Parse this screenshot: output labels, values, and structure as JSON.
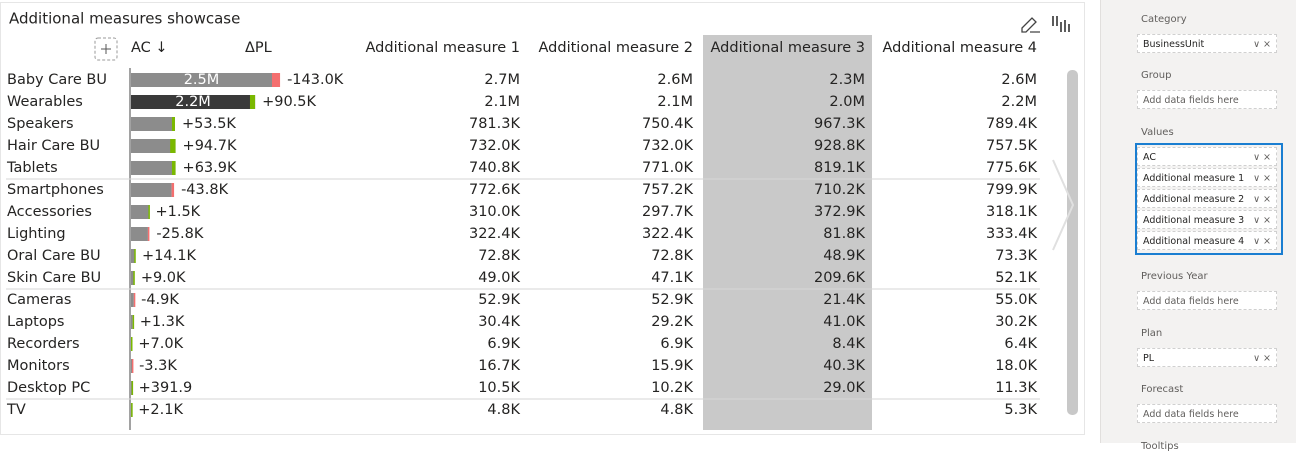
{
  "visual": {
    "title": "Additional measures showcase",
    "bar_color": "#8c8c8c",
    "positive_color": "#7ab800",
    "negative_color": "#f46f6f",
    "headers": [
      "AC ↓",
      "ΔPL",
      "Additional measure 1",
      "Additional measure 2",
      "Additional measure 3",
      "Additional measure 4"
    ],
    "rows": [
      {
        "name": "Baby Care BU",
        "ac": 2500000,
        "ac_label": "2.5M",
        "delta": -143000,
        "delta_label": "-143.0K",
        "measures": [
          "2.7M",
          "2.6M",
          "2.3M",
          "2.6M"
        ]
      },
      {
        "name": "Wearables",
        "ac": 2200000,
        "ac_label": "2.2M",
        "color": "#3a3a3a",
        "delta": 90500,
        "delta_label": "+90.5K",
        "measures": [
          "2.1M",
          "2.1M",
          "2.0M",
          "2.2M"
        ]
      },
      {
        "name": "Speakers",
        "ac": 780000,
        "delta": 53500,
        "delta_label": "+53.5K",
        "measures": [
          "781.3K",
          "750.4K",
          "967.3K",
          "789.4K"
        ]
      },
      {
        "name": "Hair Care BU",
        "ac": 790000,
        "delta": 94700,
        "delta_label": "+94.7K",
        "measures": [
          "732.0K",
          "732.0K",
          "928.8K",
          "757.5K"
        ]
      },
      {
        "name": "Tablets",
        "ac": 790000,
        "delta": 63900,
        "delta_label": "+63.9K",
        "measures": [
          "740.8K",
          "771.0K",
          "819.1K",
          "775.6K"
        ]
      },
      {
        "name": "Smartphones",
        "ac": 720000,
        "delta": -43800,
        "delta_label": "-43.8K",
        "measures": [
          "772.6K",
          "757.2K",
          "710.2K",
          "799.9K"
        ]
      },
      {
        "name": "Accessories",
        "ac": 310000,
        "delta": 1500,
        "delta_label": "+1.5K",
        "measures": [
          "310.0K",
          "297.7K",
          "372.9K",
          "318.1K"
        ]
      },
      {
        "name": "Lighting",
        "ac": 300000,
        "delta": -25800,
        "delta_label": "-25.8K",
        "measures": [
          "322.4K",
          "322.4K",
          "81.8K",
          "333.4K"
        ]
      },
      {
        "name": "Oral Care BU",
        "ac": 72000,
        "delta": 14100,
        "delta_label": "+14.1K",
        "measures": [
          "72.8K",
          "72.8K",
          "48.9K",
          "73.3K"
        ]
      },
      {
        "name": "Skin Care BU",
        "ac": 50000,
        "delta": 9000,
        "delta_label": "+9.0K",
        "measures": [
          "49.0K",
          "47.1K",
          "209.6K",
          "52.1K"
        ]
      },
      {
        "name": "Cameras",
        "ac": 50000,
        "delta": -4900,
        "delta_label": "-4.9K",
        "measures": [
          "52.9K",
          "52.9K",
          "21.4K",
          "55.0K"
        ]
      },
      {
        "name": "Laptops",
        "ac": 30000,
        "delta": 1300,
        "delta_label": "+1.3K",
        "measures": [
          "30.4K",
          "29.2K",
          "41.0K",
          "30.2K"
        ]
      },
      {
        "name": "Recorders",
        "ac": 7000,
        "delta": 7000,
        "delta_label": "+7.0K",
        "measures": [
          "6.9K",
          "6.9K",
          "8.4K",
          "6.4K"
        ]
      },
      {
        "name": "Monitors",
        "ac": 16000,
        "delta": -3300,
        "delta_label": "-3.3K",
        "measures": [
          "16.7K",
          "15.9K",
          "40.3K",
          "18.0K"
        ]
      },
      {
        "name": "Desktop PC",
        "ac": 11000,
        "delta": 391.9,
        "delta_label": "+391.9",
        "measures": [
          "10.5K",
          "10.2K",
          "29.0K",
          "11.3K"
        ]
      },
      {
        "name": "TV",
        "ac": 5000,
        "delta": 2100,
        "delta_label": "+2.1K",
        "measures": [
          "4.8K",
          "4.8K",
          null,
          "5.3K"
        ]
      }
    ]
  },
  "pane": {
    "wells": [
      {
        "label": "Category",
        "fields": [
          "BusinessUnit"
        ]
      },
      {
        "label": "Group",
        "placeholder": "Add data fields here"
      },
      {
        "label": "Values",
        "fields": [
          "AC",
          "Additional measure 1",
          "Additional measure 2",
          "Additional measure 3",
          "Additional measure 4"
        ]
      },
      {
        "label": "Previous Year",
        "placeholder": "Add data fields here"
      },
      {
        "label": "Plan",
        "fields": [
          "PL"
        ]
      },
      {
        "label": "Forecast",
        "placeholder": "Add data fields here"
      },
      {
        "label": "Tooltips"
      }
    ]
  }
}
